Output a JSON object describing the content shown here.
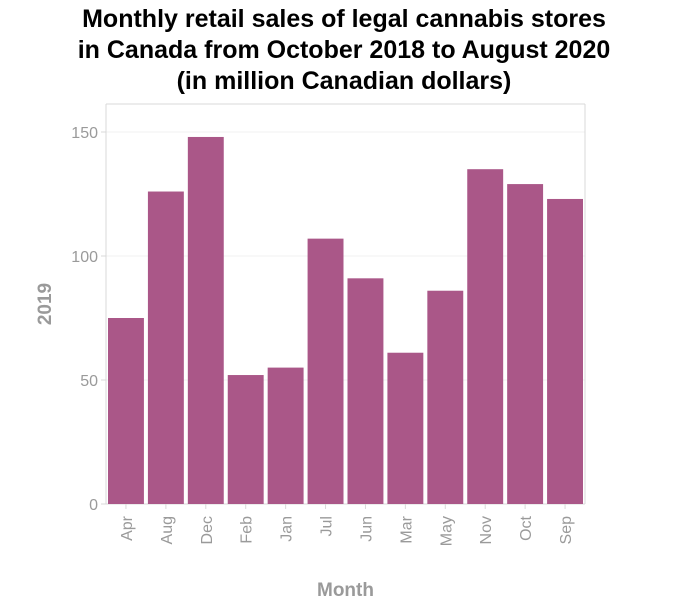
{
  "chart_data": {
    "type": "bar",
    "title": [
      "Monthly retail sales of legal cannabis stores",
      "in Canada from October 2018 to August 2020",
      "(in million Canadian dollars)"
    ],
    "xlabel": "Month",
    "ylabel": "2019",
    "categories": [
      "Apr",
      "Aug",
      "Dec",
      "Feb",
      "Jan",
      "Jul",
      "Jun",
      "Mar",
      "May",
      "Nov",
      "Oct",
      "Sep"
    ],
    "values": [
      75,
      126,
      148,
      52,
      55,
      107,
      91,
      61,
      86,
      135,
      129,
      123
    ],
    "ylim": [
      0,
      150
    ],
    "yticks": [
      0,
      50,
      100,
      150
    ],
    "grid": true,
    "bar_color": "#aa5788",
    "grid_color": "#f0f0f0",
    "axis_color": "#d9d9d9",
    "label_color": "#9a9a9a"
  }
}
